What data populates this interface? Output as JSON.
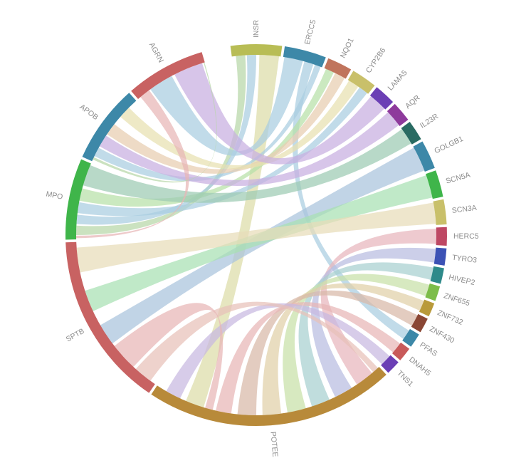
{
  "chart_data": {
    "type": "chord",
    "segments": [
      {
        "name": "INSR",
        "start": -7.8,
        "end": 7.8,
        "color": "#b8bd55"
      },
      {
        "name": "ERCC5",
        "start": 8.6,
        "end": 21.4,
        "color": "#3d88a8"
      },
      {
        "name": "NQO1",
        "start": 22.2,
        "end": 29.8,
        "color": "#c0745c"
      },
      {
        "name": "CYP2B6",
        "start": 30.6,
        "end": 38.4,
        "color": "#c9c06a"
      },
      {
        "name": "LAMA5",
        "start": 39.2,
        "end": 45.8,
        "color": "#6b3fb5"
      },
      {
        "name": "AQR",
        "start": 46.6,
        "end": 52.8,
        "color": "#8e3a9c"
      },
      {
        "name": "IL23R",
        "start": 53.6,
        "end": 59.8,
        "color": "#296b62"
      },
      {
        "name": "GOLGB1",
        "start": 60.6,
        "end": 69.4,
        "color": "#3d88a8"
      },
      {
        "name": "SCN5A",
        "start": 70.2,
        "end": 78.4,
        "color": "#3fb54a"
      },
      {
        "name": "SCN3A",
        "start": 79.2,
        "end": 86.8,
        "color": "#c9c06a"
      },
      {
        "name": "HERC5",
        "start": 87.6,
        "end": 93.2,
        "color": "#be4864"
      },
      {
        "name": "TYRO3",
        "start": 94.0,
        "end": 99.2,
        "color": "#3c52b5"
      },
      {
        "name": "HIVEP2",
        "start": 100.0,
        "end": 104.8,
        "color": "#2e8a8a"
      },
      {
        "name": "ZNF655",
        "start": 105.6,
        "end": 110.2,
        "color": "#7dbd4a"
      },
      {
        "name": "ZNF732",
        "start": 111.0,
        "end": 115.2,
        "color": "#b99a3a"
      },
      {
        "name": "ZNF430",
        "start": 116.0,
        "end": 120.6,
        "color": "#8a4634"
      },
      {
        "name": "PFAS",
        "start": 121.4,
        "end": 125.8,
        "color": "#3d88a8"
      },
      {
        "name": "DNAH5",
        "start": 126.6,
        "end": 131.0,
        "color": "#c85a5a"
      },
      {
        "name": "TNS1",
        "start": 131.8,
        "end": 136.2,
        "color": "#6b3fb5"
      },
      {
        "name": "POTEE",
        "start": 137.0,
        "end": 213.4,
        "color": "#b88a3a"
      },
      {
        "name": "SPTB",
        "start": 214.2,
        "end": 267.8,
        "color": "#c86262"
      },
      {
        "name": "MPO",
        "start": 268.6,
        "end": 293.4,
        "color": "#3fb54a"
      },
      {
        "name": "APOB",
        "start": 294.2,
        "end": 318.2,
        "color": "#3d88a8"
      },
      {
        "name": "AGRN",
        "start": 319.0,
        "end": 343.4,
        "color": "#c86262"
      }
    ],
    "ribbons": [
      {
        "a": "INSR",
        "a0": -6.5,
        "a1": -3.5,
        "b": "MPO",
        "b0": 270.0,
        "b1": 273.0,
        "color": "#b7d7a8"
      },
      {
        "a": "INSR",
        "a0": -3.0,
        "a1": 0.0,
        "b": "MPO",
        "b0": 273.5,
        "b1": 276.5,
        "color": "#a9cde0"
      },
      {
        "a": "INSR",
        "a0": 1.0,
        "a1": 7.3,
        "b": "POTEE",
        "b0": 197.0,
        "b1": 203.0,
        "color": "#dcdca8"
      },
      {
        "a": "ERCC5",
        "a0": 9.0,
        "a1": 15.0,
        "b": "AGRN",
        "b0": 324.0,
        "b1": 332.0,
        "color": "#a9cde0"
      },
      {
        "a": "ERCC5",
        "a0": 15.5,
        "a1": 18.5,
        "b": "PFAS",
        "b0": 122.0,
        "b1": 125.2,
        "color": "#a9cde0"
      },
      {
        "a": "ERCC5",
        "a0": 19.0,
        "a1": 21.0,
        "b": "APOB",
        "b0": 296.0,
        "b1": 299.0,
        "color": "#a9cde0"
      },
      {
        "a": "NQO1",
        "a0": 22.8,
        "a1": 25.5,
        "b": "MPO",
        "b0": 281.0,
        "b1": 285.0,
        "color": "#b7e0a8"
      },
      {
        "a": "NQO1",
        "a0": 26.0,
        "a1": 29.4,
        "b": "APOB",
        "b0": 304.0,
        "b1": 308.0,
        "color": "#e8cdb0"
      },
      {
        "a": "CYP2B6",
        "a0": 31.0,
        "a1": 34.5,
        "b": "APOB",
        "b0": 311.0,
        "b1": 315.0,
        "color": "#e8e0b0"
      },
      {
        "a": "CYP2B6",
        "a0": 35.0,
        "a1": 38.0,
        "b": "MPO",
        "b0": 277.0,
        "b1": 280.5,
        "color": "#a9cde0"
      },
      {
        "a": "LAMA5",
        "a0": 39.6,
        "a1": 45.4,
        "b": "AGRN",
        "b0": 333.0,
        "b1": 342.5,
        "color": "#c8aee0"
      },
      {
        "a": "AQR",
        "a0": 47.0,
        "a1": 52.4,
        "b": "APOB",
        "b0": 299.5,
        "b1": 303.5,
        "color": "#c8aee0"
      },
      {
        "a": "IL23R",
        "a0": 54.0,
        "a1": 59.4,
        "b": "MPO",
        "b0": 286.0,
        "b1": 292.8,
        "color": "#9ccab3"
      },
      {
        "a": "GOLGB1",
        "a0": 61.0,
        "a1": 69.0,
        "b": "SPTB",
        "b0": 233.0,
        "b1": 240.0,
        "color": "#a9c3dc"
      },
      {
        "a": "SCN5A",
        "a0": 70.6,
        "a1": 78.0,
        "b": "SPTB",
        "b0": 245.0,
        "b1": 252.0,
        "color": "#a8e0b3"
      },
      {
        "a": "SCN3A",
        "a0": 79.6,
        "a1": 86.4,
        "b": "SPTB",
        "b0": 258.0,
        "b1": 266.0,
        "color": "#e8dcb8"
      },
      {
        "a": "HERC5",
        "a0": 88.0,
        "a1": 92.8,
        "b": "POTEE",
        "b0": 140.0,
        "b1": 146.0,
        "color": "#e8b5bd"
      },
      {
        "a": "TYRO3",
        "a0": 94.4,
        "a1": 98.8,
        "b": "POTEE",
        "b0": 148.0,
        "b1": 154.0,
        "color": "#b8bce0"
      },
      {
        "a": "HIVEP2",
        "a0": 100.4,
        "a1": 104.4,
        "b": "POTEE",
        "b0": 156.0,
        "b1": 162.0,
        "color": "#a8d0d0"
      },
      {
        "a": "ZNF655",
        "a0": 106.0,
        "a1": 109.8,
        "b": "POTEE",
        "b0": 164.0,
        "b1": 170.0,
        "color": "#c8e0a8"
      },
      {
        "a": "ZNF732",
        "a0": 111.4,
        "a1": 114.8,
        "b": "POTEE",
        "b0": 172.0,
        "b1": 178.0,
        "color": "#e0d0a8"
      },
      {
        "a": "ZNF430",
        "a0": 116.4,
        "a1": 120.2,
        "b": "POTEE",
        "b0": 180.0,
        "b1": 186.0,
        "color": "#d8b8a8"
      },
      {
        "a": "DNAH5",
        "a0": 127.0,
        "a1": 130.6,
        "b": "POTEE",
        "b0": 188.0,
        "b1": 193.0,
        "color": "#e8b5b5"
      },
      {
        "a": "TNS1",
        "a0": 132.2,
        "a1": 135.8,
        "b": "POTEE",
        "b0": 205.0,
        "b1": 210.0,
        "color": "#c8b8e0"
      },
      {
        "a": "POTEE",
        "a0": 137.5,
        "a1": 139.5,
        "b": "SPTB",
        "b0": 216.0,
        "b1": 222.0,
        "color": "#e8c0b8"
      },
      {
        "a": "SPTB",
        "a0": 223.0,
        "a1": 232.0,
        "b": "POTEE",
        "b0": 194.0,
        "b1": 196.5,
        "color": "#e8b5b5"
      },
      {
        "a": "AGRN",
        "a0": 320.0,
        "a1": 323.5,
        "b": "MPO",
        "b0": 269.0,
        "b1": 269.8,
        "color": "#e8b5b5"
      },
      {
        "a": "APOB",
        "a0": 294.8,
        "a1": 295.6,
        "b": "AGRN",
        "b0": 343.0,
        "b1": 343.3,
        "color": "#b7d7a8"
      }
    ]
  }
}
